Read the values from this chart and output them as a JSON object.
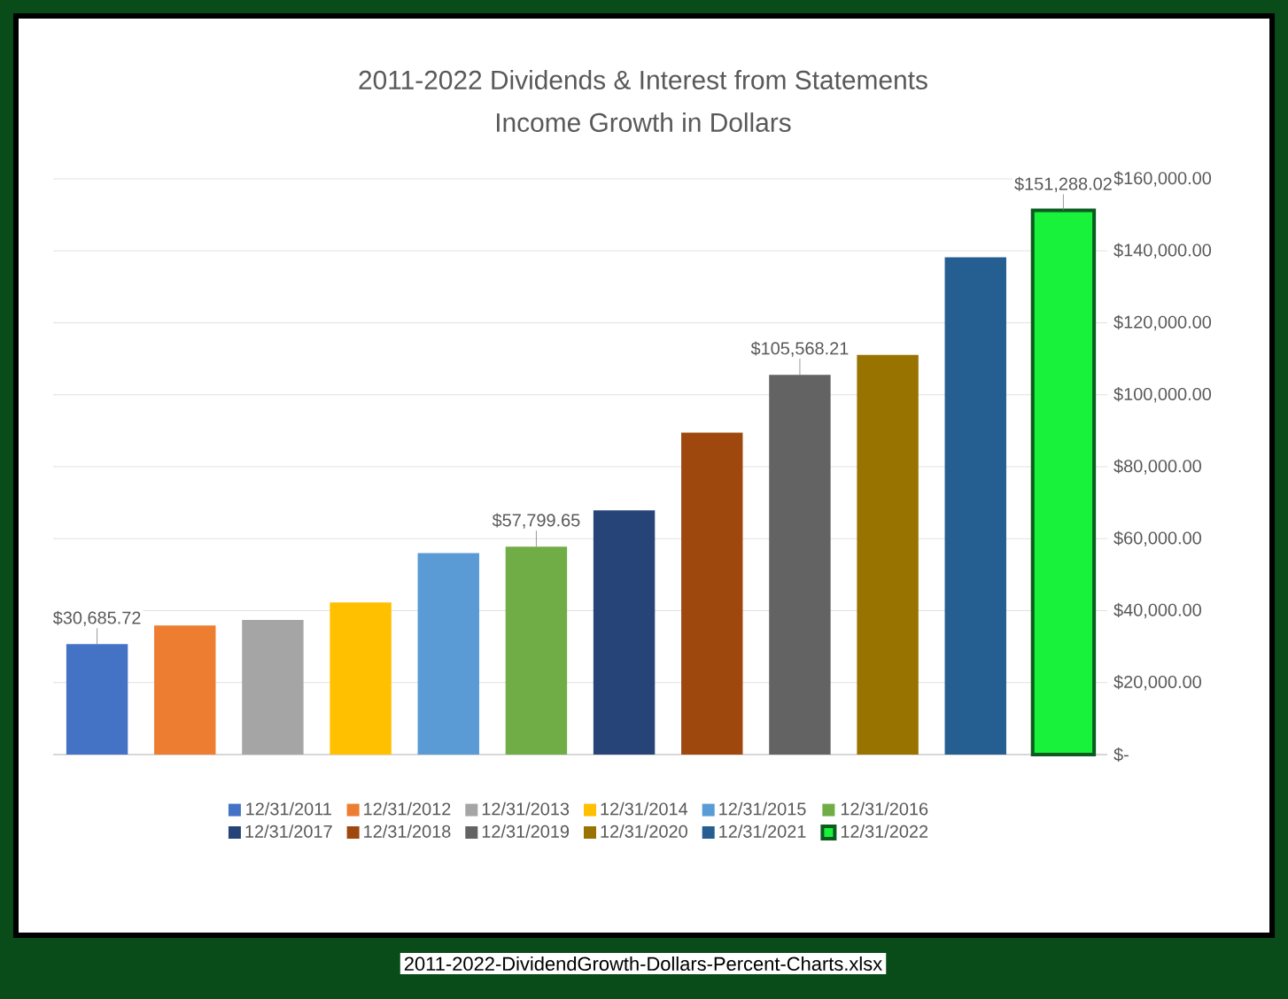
{
  "chart_data": {
    "type": "bar",
    "title": "2011-2022 Dividends & Interest from Statements",
    "subtitle": "Income Growth in Dollars",
    "categories": [
      null,
      null,
      null,
      null,
      null,
      null,
      null,
      null,
      null,
      null,
      null,
      null
    ],
    "series": [
      {
        "name": "12/31/2011",
        "color": "#4472c4",
        "values": [
          30685.72,
          null,
          null,
          null,
          null,
          null,
          null,
          null,
          null,
          null,
          null,
          null
        ],
        "value_labels": [
          "$30,685.72",
          null,
          null,
          null,
          null,
          null,
          null,
          null,
          null,
          null,
          null,
          null
        ]
      },
      {
        "name": "12/31/2012",
        "color": "#ed7d31",
        "values": [
          null,
          35900,
          null,
          null,
          null,
          null,
          null,
          null,
          null,
          null,
          null,
          null
        ]
      },
      {
        "name": "12/31/2013",
        "color": "#a5a5a5",
        "values": [
          null,
          null,
          37400,
          null,
          null,
          null,
          null,
          null,
          null,
          null,
          null,
          null
        ]
      },
      {
        "name": "12/31/2014",
        "color": "#ffc000",
        "values": [
          null,
          null,
          null,
          42300,
          null,
          null,
          null,
          null,
          null,
          null,
          null,
          null
        ]
      },
      {
        "name": "12/31/2015",
        "color": "#5b9bd5",
        "values": [
          null,
          null,
          null,
          null,
          56000,
          null,
          null,
          null,
          null,
          null,
          null,
          null
        ]
      },
      {
        "name": "12/31/2016",
        "color": "#70ad47",
        "values": [
          null,
          null,
          null,
          null,
          null,
          57799.65,
          null,
          null,
          null,
          null,
          null,
          null
        ],
        "value_labels": [
          null,
          null,
          null,
          null,
          null,
          "$57,799.65",
          null,
          null,
          null,
          null,
          null,
          null
        ]
      },
      {
        "name": "12/31/2017",
        "color": "#264478",
        "values": [
          null,
          null,
          null,
          null,
          null,
          null,
          67900,
          null,
          null,
          null,
          null,
          null
        ]
      },
      {
        "name": "12/31/2018",
        "color": "#9e480e",
        "values": [
          null,
          null,
          null,
          null,
          null,
          null,
          null,
          89500,
          null,
          null,
          null,
          null
        ]
      },
      {
        "name": "12/31/2019",
        "color": "#636363",
        "values": [
          null,
          null,
          null,
          null,
          null,
          null,
          null,
          null,
          105568.21,
          null,
          null,
          null
        ],
        "value_labels": [
          null,
          null,
          null,
          null,
          null,
          null,
          null,
          null,
          "$105,568.21",
          null,
          null,
          null
        ]
      },
      {
        "name": "12/31/2020",
        "color": "#997300",
        "values": [
          null,
          null,
          null,
          null,
          null,
          null,
          null,
          null,
          null,
          111100,
          null,
          null
        ]
      },
      {
        "name": "12/31/2021",
        "color": "#255e91",
        "values": [
          null,
          null,
          null,
          null,
          null,
          null,
          null,
          null,
          null,
          null,
          138200,
          null
        ]
      },
      {
        "name": "12/31/2022",
        "color": "#18f23a",
        "values": [
          null,
          null,
          null,
          null,
          null,
          null,
          null,
          null,
          null,
          null,
          null,
          151288.02
        ],
        "value_labels": [
          null,
          null,
          null,
          null,
          null,
          null,
          null,
          null,
          null,
          null,
          null,
          "$151,288.02"
        ]
      }
    ],
    "ylim": [
      0,
      160000
    ],
    "yticks": [
      {
        "value": 0,
        "label": "$-"
      },
      {
        "value": 20000,
        "label": "$20,000.00"
      },
      {
        "value": 40000,
        "label": "$40,000.00"
      },
      {
        "value": 60000,
        "label": "$60,000.00"
      },
      {
        "value": 80000,
        "label": "$80,000.00"
      },
      {
        "value": 100000,
        "label": "$100,000.00"
      },
      {
        "value": 120000,
        "label": "$120,000.00"
      },
      {
        "value": 140000,
        "label": "$140,000.00"
      },
      {
        "value": 160000,
        "label": "$160,000.00"
      }
    ],
    "grid": "y",
    "legend": "bottom",
    "tick_labels": "y",
    "annotations": [
      "2011-2022-DividendGrowth-Dollars-Percent-Charts.xlsx"
    ]
  }
}
